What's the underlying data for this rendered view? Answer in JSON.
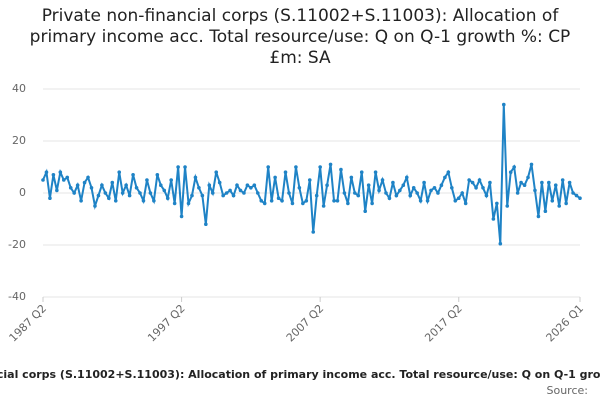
{
  "chart_data": {
    "type": "line",
    "title": "Private non-financial corps (S.11002+S.11003): Allocation of primary income acc. Total resource/use: Q on Q-1 growth %: CP £m: SA",
    "source_label": "Source:",
    "categories": [
      "1987 Q2",
      null,
      null,
      null,
      null,
      null,
      null,
      null,
      null,
      null,
      null,
      null,
      null,
      null,
      null,
      null,
      null,
      null,
      null,
      null,
      null,
      null,
      null,
      null,
      null,
      null,
      null,
      null,
      null,
      null,
      null,
      null,
      null,
      null,
      null,
      null,
      null,
      null,
      null,
      null,
      "1997 Q2",
      null,
      null,
      null,
      null,
      null,
      null,
      null,
      null,
      null,
      null,
      null,
      null,
      null,
      null,
      null,
      null,
      null,
      null,
      null,
      null,
      null,
      null,
      null,
      null,
      null,
      null,
      null,
      null,
      null,
      null,
      null,
      null,
      null,
      null,
      null,
      null,
      null,
      null,
      null,
      "2007 Q2",
      null,
      null,
      null,
      null,
      null,
      null,
      null,
      null,
      null,
      null,
      null,
      null,
      null,
      null,
      null,
      null,
      null,
      null,
      null,
      null,
      null,
      null,
      null,
      null,
      null,
      null,
      null,
      null,
      null,
      null,
      null,
      null,
      null,
      null,
      null,
      null,
      null,
      null,
      null,
      "2017 Q2",
      null,
      null,
      null,
      null,
      null,
      null,
      null,
      null,
      null,
      null,
      null,
      null,
      null,
      null,
      null,
      null,
      null,
      null,
      null,
      null,
      null,
      null,
      null,
      null,
      null,
      null,
      null,
      null,
      null,
      null,
      null,
      null,
      null,
      null,
      "2026 Q1"
    ],
    "series": [
      {
        "name": "Q on Q-1 growth",
        "color": "#1f83c6",
        "values": [
          5,
          8,
          -2,
          7,
          1,
          8,
          5,
          6,
          2,
          0,
          3,
          -3,
          4,
          6,
          2,
          -5,
          -1,
          3,
          0,
          -2,
          4,
          -3,
          8,
          0,
          3,
          -1,
          7,
          2,
          0,
          -3,
          5,
          0,
          -3,
          7,
          3,
          1,
          -2,
          5,
          -4,
          10,
          -9,
          10,
          -4,
          -1,
          6,
          2,
          -1,
          -12,
          3,
          0,
          8,
          4,
          -1,
          0,
          1,
          -1,
          3,
          1,
          0,
          3,
          2,
          3,
          0,
          -3,
          -4,
          10,
          -3,
          6,
          -2,
          -3,
          8,
          0,
          -4,
          10,
          2,
          -4,
          -3,
          5,
          -15,
          -1,
          10,
          -5,
          3,
          11,
          -3,
          -3,
          9,
          0,
          -4,
          6,
          0,
          -1,
          8,
          -7,
          3,
          -4,
          8,
          1,
          5,
          0,
          -2,
          4,
          -1,
          1,
          3,
          6,
          -1,
          2,
          0,
          -3,
          4,
          -3,
          1,
          2,
          0,
          3,
          6,
          8,
          2,
          -3,
          -2,
          0,
          -4,
          5,
          4,
          2,
          5,
          2,
          -1,
          4,
          -10,
          -4,
          -19.5,
          34,
          -5,
          8,
          10,
          0,
          4,
          3,
          6,
          11,
          1,
          -9,
          4,
          -7,
          4,
          -3,
          3,
          -5,
          5,
          -4,
          4,
          0,
          -1,
          -2
        ]
      }
    ],
    "ylim": [
      -40,
      40
    ],
    "yticks": [
      -40,
      -20,
      0,
      20,
      40
    ],
    "grid": true
  }
}
